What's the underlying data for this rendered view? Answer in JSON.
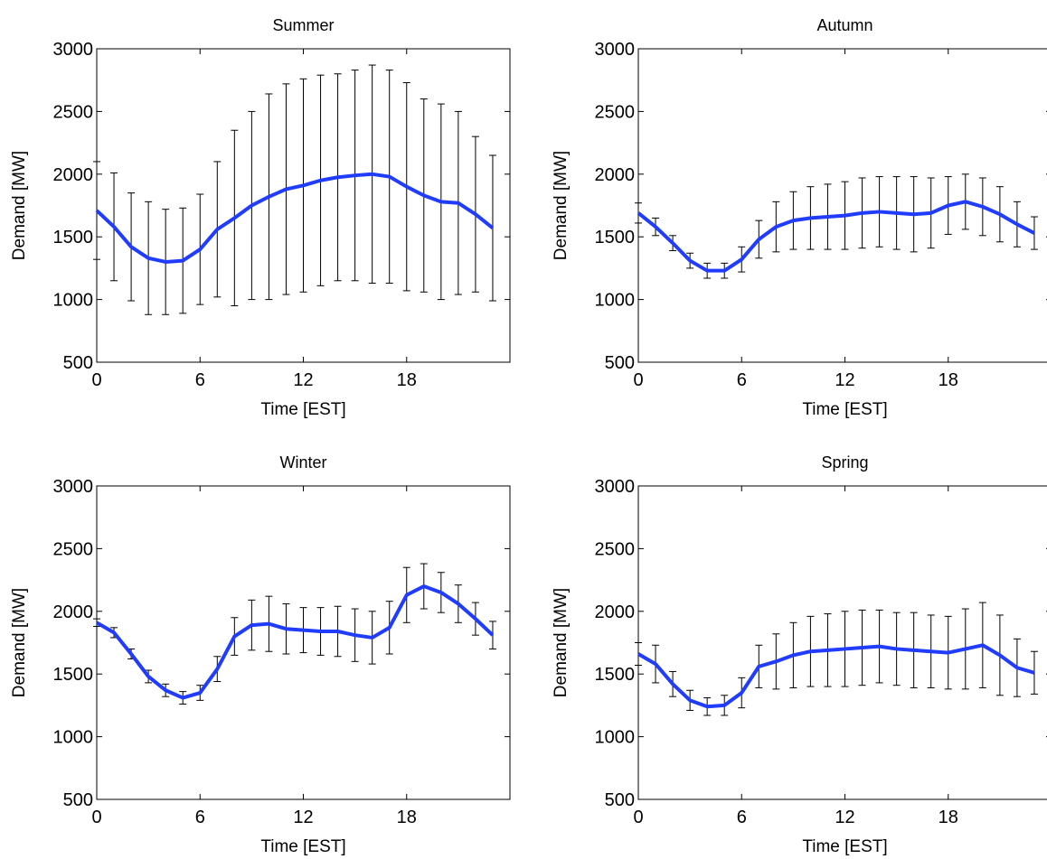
{
  "chart_data": [
    {
      "type": "line",
      "title": "Summer",
      "xlabel": "Time [EST]",
      "ylabel": "Demand [MW]",
      "color": "#1f3cff",
      "errorbar_color": "#000000",
      "xlim": [
        0,
        24
      ],
      "ylim": [
        500,
        3000
      ],
      "xticks": [
        0,
        6,
        12,
        18
      ],
      "yticks": [
        500,
        1000,
        1500,
        2000,
        2500,
        3000
      ],
      "x": [
        0,
        1,
        2,
        3,
        4,
        5,
        6,
        7,
        8,
        9,
        10,
        11,
        12,
        13,
        14,
        15,
        16,
        17,
        18,
        19,
        20,
        21,
        22,
        23
      ],
      "values": [
        1710,
        1580,
        1420,
        1330,
        1300,
        1310,
        1400,
        1560,
        1650,
        1750,
        1820,
        1880,
        1910,
        1950,
        1975,
        1990,
        2000,
        1980,
        1900,
        1830,
        1780,
        1770,
        1680,
        1570
      ],
      "errors": [
        390,
        430,
        430,
        450,
        420,
        420,
        440,
        540,
        700,
        750,
        820,
        840,
        850,
        840,
        825,
        840,
        870,
        850,
        830,
        770,
        780,
        730,
        620,
        580
      ]
    },
    {
      "type": "line",
      "title": "Autumn",
      "xlabel": "Time [EST]",
      "ylabel": "Demand [MW]",
      "color": "#1f3cff",
      "errorbar_color": "#000000",
      "xlim": [
        0,
        24
      ],
      "ylim": [
        500,
        3000
      ],
      "xticks": [
        0,
        6,
        12,
        18
      ],
      "yticks": [
        500,
        1000,
        1500,
        2000,
        2500,
        3000
      ],
      "x": [
        0,
        1,
        2,
        3,
        4,
        5,
        6,
        7,
        8,
        9,
        10,
        11,
        12,
        13,
        14,
        15,
        16,
        17,
        18,
        19,
        20,
        21,
        22,
        23
      ],
      "values": [
        1690,
        1580,
        1450,
        1310,
        1230,
        1230,
        1320,
        1480,
        1580,
        1630,
        1650,
        1660,
        1670,
        1690,
        1700,
        1690,
        1680,
        1690,
        1750,
        1780,
        1740,
        1680,
        1600,
        1530
      ],
      "errors": [
        80,
        70,
        60,
        60,
        60,
        60,
        100,
        150,
        200,
        230,
        250,
        260,
        270,
        280,
        280,
        290,
        300,
        280,
        230,
        220,
        230,
        220,
        180,
        130
      ]
    },
    {
      "type": "line",
      "title": "Winter",
      "xlabel": "Time [EST]",
      "ylabel": "Demand [MW]",
      "color": "#1f3cff",
      "errorbar_color": "#000000",
      "xlim": [
        0,
        24
      ],
      "ylim": [
        500,
        3000
      ],
      "xticks": [
        0,
        6,
        12,
        18
      ],
      "yticks": [
        500,
        1000,
        1500,
        2000,
        2500,
        3000
      ],
      "x": [
        0,
        1,
        2,
        3,
        4,
        5,
        6,
        7,
        8,
        9,
        10,
        11,
        12,
        13,
        14,
        15,
        16,
        17,
        18,
        19,
        20,
        21,
        22,
        23
      ],
      "values": [
        1910,
        1830,
        1660,
        1480,
        1370,
        1310,
        1350,
        1540,
        1800,
        1890,
        1900,
        1860,
        1850,
        1840,
        1840,
        1810,
        1790,
        1870,
        2130,
        2200,
        2150,
        2060,
        1940,
        1810
      ],
      "errors": [
        30,
        40,
        40,
        50,
        50,
        50,
        60,
        100,
        150,
        200,
        220,
        200,
        180,
        190,
        200,
        210,
        210,
        210,
        220,
        180,
        160,
        150,
        130,
        110
      ]
    },
    {
      "type": "line",
      "title": "Spring",
      "xlabel": "Time [EST]",
      "ylabel": "Demand [MW]",
      "color": "#1f3cff",
      "errorbar_color": "#000000",
      "xlim": [
        0,
        24
      ],
      "ylim": [
        500,
        3000
      ],
      "xticks": [
        0,
        6,
        12,
        18
      ],
      "yticks": [
        500,
        1000,
        1500,
        2000,
        2500,
        3000
      ],
      "x": [
        0,
        1,
        2,
        3,
        4,
        5,
        6,
        7,
        8,
        9,
        10,
        11,
        12,
        13,
        14,
        15,
        16,
        17,
        18,
        19,
        20,
        21,
        22,
        23
      ],
      "values": [
        1660,
        1580,
        1420,
        1290,
        1240,
        1250,
        1350,
        1560,
        1600,
        1650,
        1680,
        1690,
        1700,
        1710,
        1720,
        1700,
        1690,
        1680,
        1670,
        1700,
        1730,
        1650,
        1550,
        1510
      ],
      "errors": [
        90,
        150,
        100,
        80,
        70,
        80,
        120,
        170,
        220,
        260,
        280,
        290,
        300,
        300,
        290,
        290,
        300,
        290,
        290,
        320,
        340,
        320,
        230,
        170
      ]
    }
  ]
}
